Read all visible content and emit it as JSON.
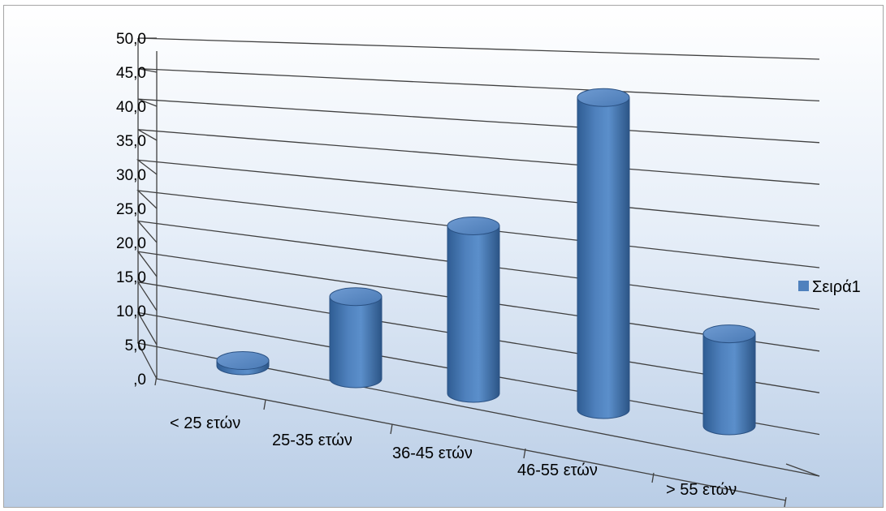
{
  "chart_data": {
    "type": "bar",
    "style": "3d-cylinder",
    "categories": [
      "< 25 ετών",
      "25-35 ετών",
      "36-45 ετών",
      "46-55 ετών",
      "> 55 ετών"
    ],
    "series": [
      {
        "name": "Σειρά1",
        "values": [
          0.8,
          12.5,
          25.5,
          47.5,
          14.0
        ],
        "color": "#4f81bd"
      }
    ],
    "ylim": [
      0,
      50
    ],
    "y_ticks": [
      ",0",
      "5,0",
      "10,0",
      "15,0",
      "20,0",
      "25,0",
      "30,0",
      "35,0",
      "40,0",
      "45,0",
      "50,0"
    ],
    "grid": true,
    "legend": {
      "position": "right",
      "entries": [
        "Σειρά1"
      ]
    }
  }
}
